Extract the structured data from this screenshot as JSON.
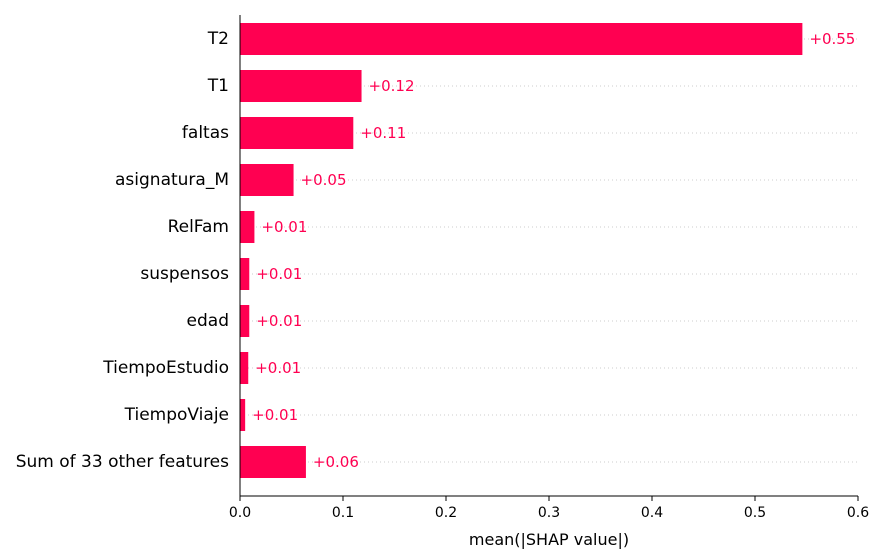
{
  "chart_data": {
    "type": "bar",
    "orientation": "horizontal",
    "categories": [
      "T2",
      "T1",
      "faltas",
      "asignatura_M",
      "RelFam",
      "suspensos",
      "edad",
      "TiempoEstudio",
      "TiempoViaje",
      "Sum of 33 other features"
    ],
    "values": [
      0.546,
      0.118,
      0.11,
      0.052,
      0.014,
      0.009,
      0.009,
      0.008,
      0.005,
      0.064
    ],
    "value_labels": [
      "+0.55",
      "+0.12",
      "+0.11",
      "+0.05",
      "+0.01",
      "+0.01",
      "+0.01",
      "+0.01",
      "+0.01",
      "+0.06"
    ],
    "xlabel": "mean(|SHAP value|)",
    "xlim": [
      0,
      0.6
    ],
    "xticks": [
      0.0,
      0.1,
      0.2,
      0.3,
      0.4,
      0.5,
      0.6
    ],
    "xtick_labels": [
      "0.0",
      "0.1",
      "0.2",
      "0.3",
      "0.4",
      "0.5",
      "0.6"
    ],
    "grid": "dotted horizontal guide lines per row",
    "colors": {
      "bar": "#ff0051",
      "label": "#ff0051",
      "axis": "#000000",
      "grid": "#cccccc"
    }
  }
}
